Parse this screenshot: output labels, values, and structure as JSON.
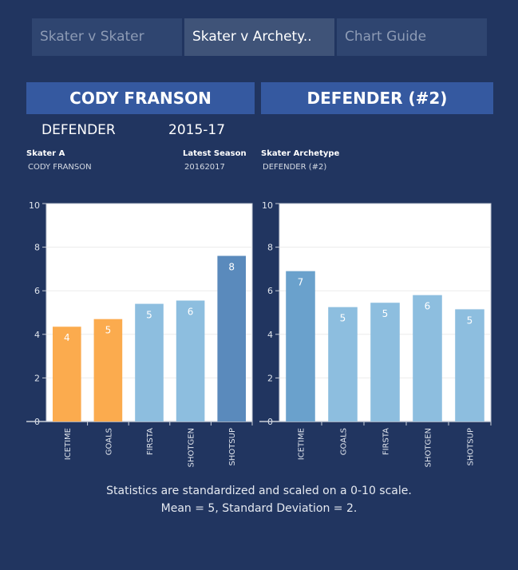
{
  "tabs": [
    {
      "label": "Skater v Skater",
      "active": false
    },
    {
      "label": "Skater v Archety..",
      "active": true
    },
    {
      "label": "Chart Guide",
      "active": false
    }
  ],
  "header": {
    "left_title": "CODY FRANSON",
    "right_title": "DEFENDER (#2)"
  },
  "summary": {
    "position": "DEFENDER",
    "season_range": "2015-17"
  },
  "filters": {
    "skater_label": "Skater A",
    "skater_value": "CODY FRANSON",
    "season_label": "Latest Season",
    "season_value": "20162017",
    "archetype_label": "Skater Archetype",
    "archetype_value": "DEFENDER (#2)"
  },
  "footer": {
    "line1": "Statistics are standardized and scaled on a 0-10 scale.",
    "line2": "Mean = 5, Standard Deviation = 2."
  },
  "colors": {
    "below_avg": "#fbab4e",
    "avg": "#8dbedf",
    "above_avg": "#5a8abc",
    "above_avg_light": "#6aa1cc"
  },
  "chart_data": [
    {
      "type": "bar",
      "title": "CODY FRANSON",
      "categories": [
        "ICETIME",
        "GOALS",
        "FIRSTA",
        "SHOTGEN",
        "SHOTSUP"
      ],
      "values": [
        4.35,
        4.7,
        5.4,
        5.55,
        7.6
      ],
      "labels": [
        "4",
        "5",
        "5",
        "6",
        "8"
      ],
      "bar_colors": [
        "#fbab4e",
        "#fbab4e",
        "#8dbedf",
        "#8dbedf",
        "#5a8abc"
      ],
      "ylim": [
        0,
        10
      ],
      "yticks": [
        "0",
        "2",
        "4",
        "6",
        "8",
        "10"
      ],
      "grid": true
    },
    {
      "type": "bar",
      "title": "DEFENDER (#2)",
      "categories": [
        "ICETIME",
        "GOALS",
        "FIRSTA",
        "SHOTGEN",
        "SHOTSUP"
      ],
      "values": [
        6.9,
        5.25,
        5.45,
        5.8,
        5.15
      ],
      "labels": [
        "7",
        "5",
        "5",
        "6",
        "5"
      ],
      "bar_colors": [
        "#6aa1cc",
        "#8dbedf",
        "#8dbedf",
        "#8dbedf",
        "#8dbedf"
      ],
      "ylim": [
        0,
        10
      ],
      "yticks": [
        "0",
        "2",
        "4",
        "6",
        "8",
        "10"
      ],
      "grid": true
    }
  ]
}
